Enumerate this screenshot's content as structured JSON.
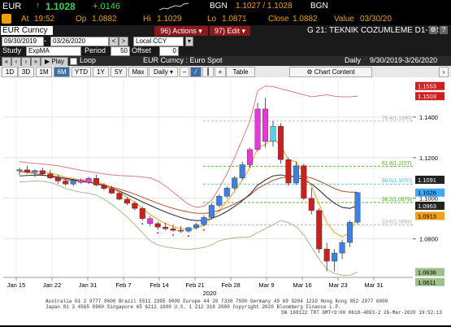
{
  "ticker": {
    "symbol": "EUR",
    "price": "1.1028",
    "change": "+.0146",
    "bid_label": "BGN",
    "bid_ask": "1.1027 / 1.1028",
    "bid_label2": "BGN",
    "at_label": "At",
    "time": "19:52",
    "open_label": "Op",
    "open": "1.0882",
    "high_label": "Hi",
    "high": "1.1029",
    "low_label": "Lo",
    "low": "1.0871",
    "close_label": "Close",
    "close": "1.0882",
    "value_label": "Value",
    "value_date": "03/30/20"
  },
  "toolbar": {
    "security": "EUR Curncy",
    "actions_num": "96)",
    "actions_label": "Actions",
    "edit_num": "97)",
    "edit_label": "Edit",
    "page_title": "G 21: TEKNIK COZUMLEME D1-TRE"
  },
  "range": {
    "start": "09/30/2019",
    "end": "03/26/2020",
    "currency": "Local CCY"
  },
  "study": {
    "label": "Study",
    "value": "ExpMA",
    "period_label": "Period",
    "period": "50",
    "offset_label": "Offset",
    "offset": "0"
  },
  "playback": {
    "play_label": "Play",
    "loop_label": "Loop",
    "chart_title": "EUR Curncy : Euro Spot",
    "frequency": "Daily",
    "date_range": "9/30/2019-3/26/2020"
  },
  "periods": {
    "tabs": [
      "1D",
      "3D",
      "1M",
      "6M",
      "YTD",
      "1Y",
      "5Y",
      "Max"
    ],
    "active": "6M",
    "freq_select": "Daily",
    "table_label": "Table",
    "chart_content_label": "Chart Content"
  },
  "axis": {
    "x_ticks": [
      "Jan 15",
      "Jan 22",
      "Jan 31",
      "Feb 7",
      "Feb 14",
      "Feb 21",
      "Feb 28",
      "Mar 9",
      "Mar 16",
      "Mar 23",
      "Mar 31"
    ],
    "year_label": "2020",
    "y_ticks": [
      "1.1400",
      "1.1200",
      "1.1000",
      "1.0800"
    ]
  },
  "price_tags": {
    "t1": "1.1553",
    "t2": "1.1503",
    "t3": "1.1091",
    "t4": "1.1028",
    "t5": "1.0963",
    "t6": "1.0913",
    "t7": "1.0636",
    "t8": "1.0611"
  },
  "fib_labels": {
    "f1": "76.4(1.1380)",
    "f2": "61.8(1.1157)",
    "f3": "50.0(1.1070)",
    "f4": "38.2(1.0979)",
    "f5": "23.6(1.0868)"
  },
  "footer": {
    "line1": "Australia 61 2 9777 8600  Brazil 5511 2395 9000  Europe 44 20 7330 7500  Germany 49 69 9204 1210  Hong Kong 852 2977 6000",
    "line2": "Japan 81 3 4565 8900    Singapore 65 6212 1000    U.S. 1 212 318 2000    Copyright 2020 Bloomberg Finance L.P.",
    "line3": "SN 168122 TRT  GMT+3:00 H618-4893-2 26-Mar-2020 19:52:13"
  },
  "colors": {
    "ticker_orange": "#f0a000",
    "up_green": "#39d353",
    "active_tab": "#3a6ea5",
    "candle_up": "#3f7fe0",
    "candle_down": "#cc1f1f",
    "candle_highlight": "#e53bd6",
    "candle_cyan": "#4fd5e6"
  },
  "chart_data": {
    "type": "candlestick",
    "x_tick_labels": [
      "Jan 15",
      "Jan 22",
      "Jan 31",
      "Feb 7",
      "Feb 14",
      "Feb 21",
      "Feb 28",
      "Mar 9",
      "Mar 16",
      "Mar 23",
      "Mar 31"
    ],
    "y_tick_labels": [
      "1.0800",
      "1.1000",
      "1.1200",
      "1.1400"
    ],
    "ylim": [
      1.061,
      1.158
    ],
    "candles": [
      {
        "o": 1.1135,
        "h": 1.115,
        "l": 1.1115,
        "c": 1.114
      },
      {
        "o": 1.114,
        "h": 1.116,
        "l": 1.112,
        "c": 1.1128
      },
      {
        "o": 1.1128,
        "h": 1.1142,
        "l": 1.1105,
        "c": 1.1136
      },
      {
        "o": 1.1136,
        "h": 1.115,
        "l": 1.111,
        "c": 1.112
      },
      {
        "o": 1.112,
        "h": 1.114,
        "l": 1.1095,
        "c": 1.11
      },
      {
        "o": 1.11,
        "h": 1.1115,
        "l": 1.107,
        "c": 1.1085
      },
      {
        "o": 1.1085,
        "h": 1.11,
        "l": 1.1062,
        "c": 1.107
      },
      {
        "o": 1.107,
        "h": 1.1095,
        "l": 1.106,
        "c": 1.1088
      },
      {
        "o": 1.1088,
        "h": 1.1098,
        "l": 1.1072,
        "c": 1.1078
      },
      {
        "o": 1.1078,
        "h": 1.1105,
        "l": 1.107,
        "c": 1.1098
      },
      {
        "o": 1.1098,
        "h": 1.1115,
        "l": 1.106,
        "c": 1.1065
      },
      {
        "o": 1.1065,
        "h": 1.1075,
        "l": 1.104,
        "c": 1.1048
      },
      {
        "o": 1.1048,
        "h": 1.106,
        "l": 1.102,
        "c": 1.1025
      },
      {
        "o": 1.1025,
        "h": 1.103,
        "l": 1.099,
        "c": 1.0995
      },
      {
        "o": 1.0995,
        "h": 1.1005,
        "l": 1.0965,
        "c": 1.0975
      },
      {
        "o": 1.0975,
        "h": 1.0985,
        "l": 1.094,
        "c": 1.095
      },
      {
        "o": 1.095,
        "h": 1.096,
        "l": 1.089,
        "c": 1.09
      },
      {
        "o": 1.09,
        "h": 1.0912,
        "l": 1.0862,
        "c": 1.0875
      },
      {
        "o": 1.0875,
        "h": 1.0885,
        "l": 1.0845,
        "c": 1.0858
      },
      {
        "o": 1.0858,
        "h": 1.088,
        "l": 1.0842,
        "c": 1.085
      },
      {
        "o": 1.085,
        "h": 1.087,
        "l": 1.0835,
        "c": 1.0842
      },
      {
        "o": 1.0842,
        "h": 1.0862,
        "l": 1.0828,
        "c": 1.0838
      },
      {
        "o": 1.0838,
        "h": 1.0858,
        "l": 1.083,
        "c": 1.0855
      },
      {
        "o": 1.0855,
        "h": 1.0878,
        "l": 1.0845,
        "c": 1.087
      },
      {
        "o": 1.087,
        "h": 1.0915,
        "l": 1.086,
        "c": 1.0905
      },
      {
        "o": 1.0905,
        "h": 1.0975,
        "l": 1.0895,
        "c": 1.0965
      },
      {
        "o": 1.0965,
        "h": 1.102,
        "l": 1.0955,
        "c": 1.101
      },
      {
        "o": 1.101,
        "h": 1.106,
        "l": 1.1,
        "c": 1.105
      },
      {
        "o": 1.105,
        "h": 1.111,
        "l": 1.104,
        "c": 1.11
      },
      {
        "o": 1.11,
        "h": 1.118,
        "l": 1.109,
        "c": 1.1165
      },
      {
        "o": 1.1165,
        "h": 1.125,
        "l": 1.115,
        "c": 1.124
      },
      {
        "o": 1.124,
        "h": 1.147,
        "l": 1.123,
        "c": 1.144
      },
      {
        "o": 1.144,
        "h": 1.1495,
        "l": 1.125,
        "c": 1.128
      },
      {
        "o": 1.128,
        "h": 1.138,
        "l": 1.1255,
        "c": 1.1355
      },
      {
        "o": 1.1355,
        "h": 1.137,
        "l": 1.117,
        "c": 1.119
      },
      {
        "o": 1.119,
        "h": 1.12,
        "l": 1.106,
        "c": 1.1075
      },
      {
        "o": 1.1075,
        "h": 1.118,
        "l": 1.1065,
        "c": 1.116
      },
      {
        "o": 1.116,
        "h": 1.117,
        "l": 1.099,
        "c": 1.1
      },
      {
        "o": 1.1,
        "h": 1.105,
        "l": 1.092,
        "c": 1.094
      },
      {
        "o": 1.094,
        "h": 1.095,
        "l": 1.073,
        "c": 1.075
      },
      {
        "o": 1.075,
        "h": 1.078,
        "l": 1.064,
        "c": 1.069
      },
      {
        "o": 1.069,
        "h": 1.075,
        "l": 1.064,
        "c": 1.073
      },
      {
        "o": 1.073,
        "h": 1.0795,
        "l": 1.07,
        "c": 1.0782
      },
      {
        "o": 1.0782,
        "h": 1.089,
        "l": 1.076,
        "c": 1.0882
      },
      {
        "o": 1.0882,
        "h": 1.1029,
        "l": 1.0871,
        "c": 1.1028
      }
    ],
    "highlight_indices": [
      8,
      9,
      17,
      30,
      31,
      32
    ],
    "cyan_indices": [
      33
    ],
    "fib_levels": [
      1.138,
      1.1157,
      1.107,
      1.0979,
      1.0868
    ],
    "ema_red": [
      1.113,
      1.1128,
      1.1122,
      1.1115,
      1.1108,
      1.11,
      1.1092,
      1.1088,
      1.1082,
      1.1078,
      1.1072,
      1.1065,
      1.1055,
      1.1045,
      1.1033,
      1.102,
      1.1005,
      1.099,
      1.0975,
      1.0962,
      1.095,
      1.094,
      1.0932,
      1.0926,
      1.0925,
      1.093,
      1.094,
      1.0955,
      1.0972,
      1.0992,
      1.1015,
      1.1048,
      1.1068,
      1.1088,
      1.11,
      1.1105,
      1.111,
      1.1108,
      1.11,
      1.1085,
      1.1066,
      1.1048,
      1.1035,
      1.103,
      1.103
    ],
    "ema_black": [
      1.111,
      1.1112,
      1.1114,
      1.1113,
      1.111,
      1.1105,
      1.1098,
      1.1092,
      1.1085,
      1.108,
      1.1072,
      1.1062,
      1.105,
      1.1035,
      1.1018,
      1.1,
      1.0982,
      1.0965,
      1.0948,
      1.0932,
      1.0918,
      1.0905,
      1.0895,
      1.089,
      1.089,
      1.09,
      1.0915,
      1.0935,
      1.096,
      1.0988,
      1.102,
      1.1065,
      1.109,
      1.111,
      1.1115,
      1.1108,
      1.1105,
      1.109,
      1.107,
      1.104,
      1.1005,
      1.0975,
      1.0955,
      1.095,
      1.0963
    ],
    "ema_orange": [
      1.1132,
      1.1132,
      1.1132,
      1.113,
      1.1125,
      1.1115,
      1.1103,
      1.1097,
      1.109,
      1.109,
      1.1082,
      1.1068,
      1.105,
      1.1028,
      1.1005,
      1.098,
      1.095,
      1.092,
      1.0895,
      1.0875,
      1.086,
      1.085,
      1.0848,
      1.0852,
      1.0868,
      1.09,
      1.094,
      1.0985,
      1.1035,
      1.109,
      1.115,
      1.125,
      1.1265,
      1.1295,
      1.126,
      1.119,
      1.118,
      1.112,
      1.106,
      1.097,
      1.088,
      1.083,
      1.081,
      1.083,
      1.0913
    ],
    "bb_upper": [
      1.118,
      1.1175,
      1.1172,
      1.1168,
      1.1165,
      1.116,
      1.1152,
      1.1145,
      1.1138,
      1.1132,
      1.1125,
      1.112,
      1.1115,
      1.1112,
      1.111,
      1.1108,
      1.1105,
      1.11,
      1.1085,
      1.106,
      1.103,
      1.1,
      1.097,
      1.0955,
      1.096,
      1.099,
      1.105,
      1.112,
      1.12,
      1.129,
      1.138,
      1.153,
      1.1553,
      1.155,
      1.154,
      1.153,
      1.152,
      1.151,
      1.15,
      1.1505,
      1.151,
      1.1503,
      1.15,
      1.15,
      1.1503
    ],
    "bb_lower": [
      1.108,
      1.1082,
      1.1085,
      1.1083,
      1.1078,
      1.1065,
      1.1048,
      1.1038,
      1.103,
      1.1025,
      1.1015,
      1.0995,
      1.097,
      1.094,
      1.0908,
      1.087,
      1.083,
      1.079,
      1.077,
      1.076,
      1.0755,
      1.075,
      1.0748,
      1.0752,
      1.0758,
      1.077,
      1.079,
      1.08,
      1.0805,
      1.0808,
      1.081,
      1.083,
      1.085,
      1.087,
      1.089,
      1.088,
      1.086,
      1.082,
      1.076,
      1.07,
      1.065,
      1.063,
      1.062,
      1.062,
      1.0636
    ]
  }
}
